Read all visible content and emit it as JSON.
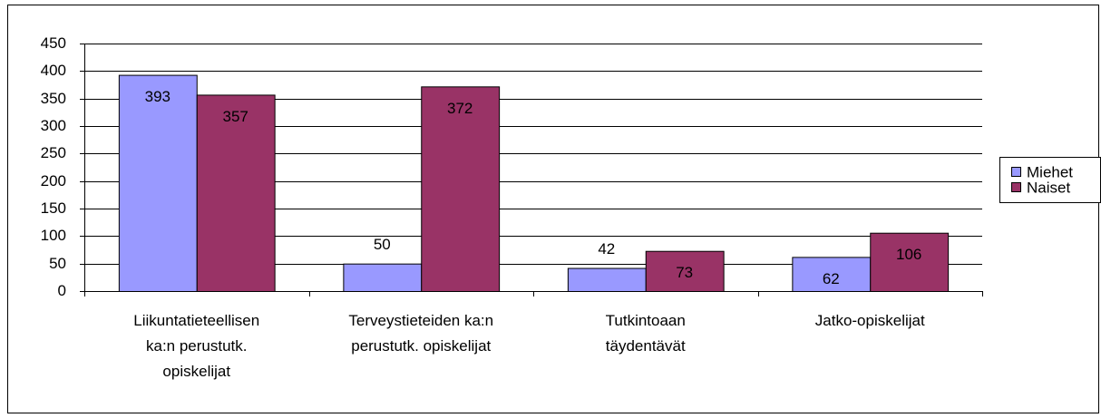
{
  "chart_data": {
    "type": "bar",
    "categories": [
      "Liikuntatieteellisen\nka:n perustutk.\nopiskelijat",
      "Terveystieteiden ka:n\nperustutk. opiskelijat",
      "Tutkintoaan\ntäydentävät",
      "Jatko-opiskelijat"
    ],
    "series": [
      {
        "name": "Miehet",
        "color": "#9999ff",
        "values": [
          393,
          50,
          42,
          62
        ]
      },
      {
        "name": "Naiset",
        "color": "#993366",
        "values": [
          357,
          372,
          73,
          106
        ]
      }
    ],
    "ylim": [
      0,
      450
    ],
    "yticks": [
      0,
      50,
      100,
      150,
      200,
      250,
      300,
      350,
      400,
      450
    ],
    "grid": true,
    "legend": "right"
  }
}
